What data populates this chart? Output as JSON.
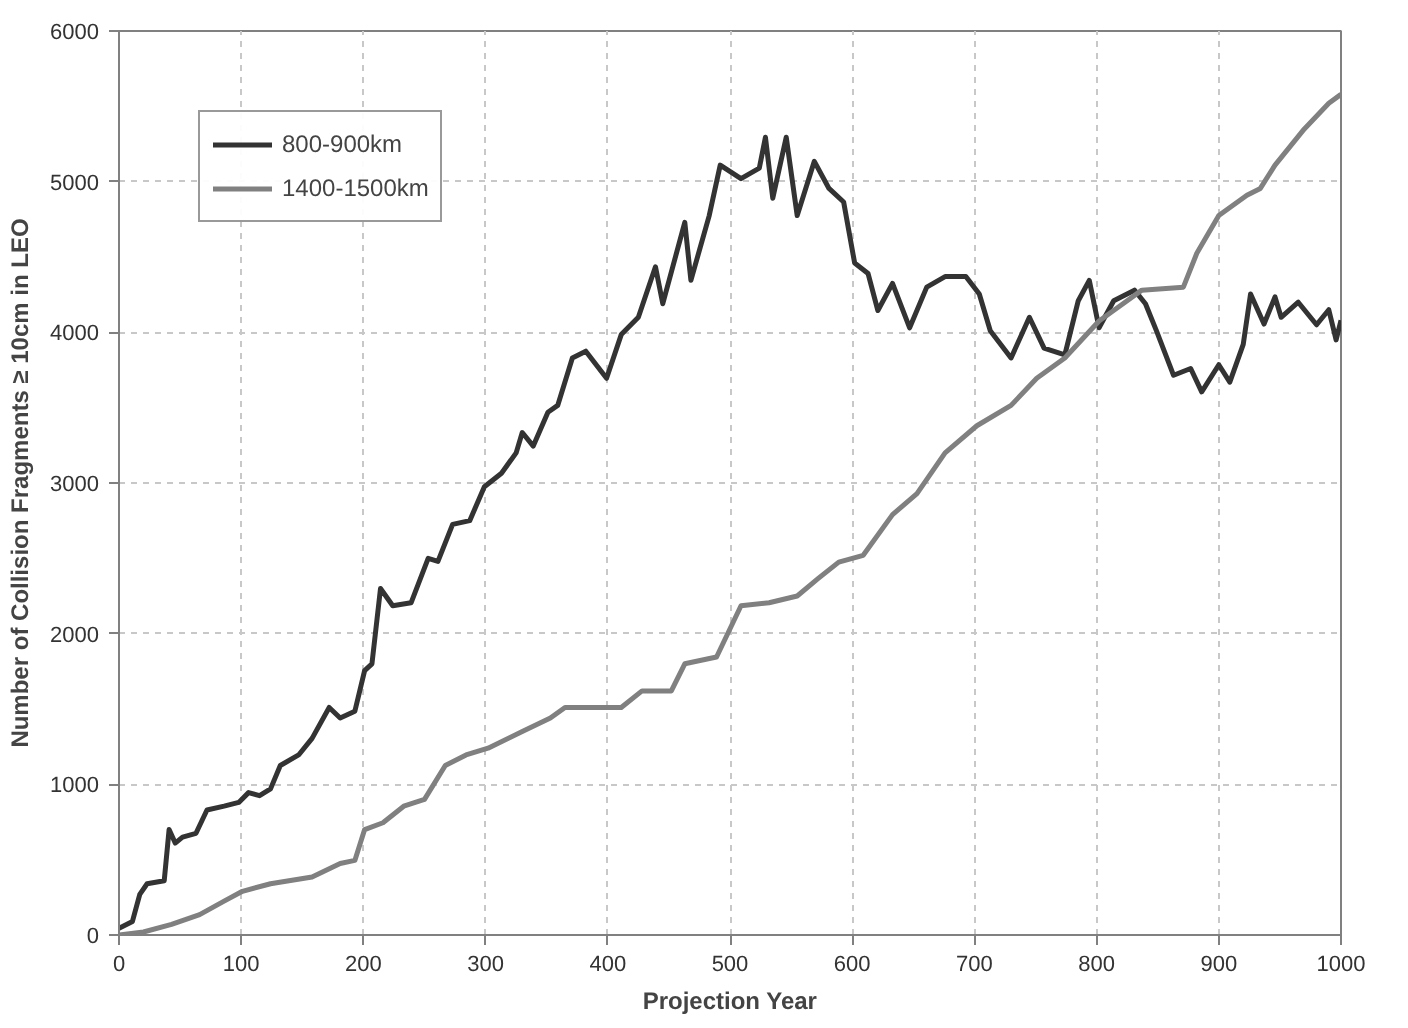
{
  "chart_data": {
    "type": "line",
    "xlabel": "Projection Year",
    "ylabel": "Number of Collision Fragments ≥ 10cm in LEO",
    "xlim": [
      0,
      1000
    ],
    "ylim": [
      0,
      6000
    ],
    "xticks": [
      0,
      100,
      200,
      300,
      400,
      500,
      600,
      700,
      800,
      900,
      1000
    ],
    "yticks": [
      0,
      1000,
      2000,
      3000,
      4000,
      5000,
      6000
    ],
    "grid": true,
    "legend": "top left",
    "line_style": "solid",
    "series": [
      {
        "name": "800-900km",
        "color": "#333333",
        "x": [
          0,
          11,
          17,
          23,
          37,
          41,
          46,
          52,
          63,
          72,
          86,
          98,
          106,
          115,
          124,
          132,
          147,
          158,
          172,
          181,
          193,
          201,
          207,
          214,
          224,
          239,
          253,
          261,
          273,
          287,
          299,
          313,
          325,
          330,
          339,
          351,
          359,
          371,
          382,
          399,
          411,
          425,
          439,
          445,
          463,
          468,
          483,
          492,
          509,
          524,
          529,
          535,
          546,
          555,
          569,
          581,
          593,
          602,
          613,
          621,
          633,
          647,
          661,
          676,
          693,
          704,
          713,
          730,
          745,
          757,
          774,
          785,
          794,
          802,
          814,
          831,
          840,
          849,
          863,
          877,
          886,
          900,
          909,
          920,
          926,
          937,
          946,
          951,
          965,
          980,
          990,
          996,
          1000
        ],
        "values": [
          45,
          90,
          270,
          340,
          360,
          700,
          610,
          650,
          675,
          830,
          855,
          880,
          945,
          925,
          970,
          1125,
          1195,
          1305,
          1510,
          1440,
          1485,
          1755,
          1800,
          2300,
          2185,
          2205,
          2500,
          2480,
          2725,
          2750,
          2975,
          3065,
          3200,
          3335,
          3245,
          3470,
          3515,
          3830,
          3875,
          3695,
          3985,
          4100,
          4435,
          4190,
          4730,
          4345,
          4775,
          5110,
          5020,
          5090,
          5295,
          4890,
          5295,
          4775,
          5135,
          4955,
          4865,
          4460,
          4390,
          4145,
          4325,
          4030,
          4300,
          4370,
          4370,
          4255,
          4010,
          3830,
          4100,
          3895,
          3850,
          4210,
          4345,
          4030,
          4210,
          4280,
          4190,
          4010,
          3715,
          3760,
          3605,
          3785,
          3670,
          3920,
          4255,
          4055,
          4235,
          4100,
          4200,
          4050,
          4150,
          3950,
          4080
        ]
      },
      {
        "name": "1400-1500km",
        "color": "#808080",
        "x": [
          0,
          20,
          43,
          66,
          86,
          101,
          124,
          158,
          181,
          193,
          201,
          216,
          233,
          250,
          267,
          284,
          302,
          330,
          353,
          365,
          388,
          411,
          428,
          452,
          463,
          489,
          509,
          532,
          555,
          572,
          589,
          609,
          633,
          653,
          676,
          702,
          730,
          751,
          774,
          802,
          825,
          837,
          871,
          882,
          900,
          923,
          934,
          946,
          970,
          990,
          1000
        ],
        "values": [
          0,
          20,
          70,
          135,
          225,
          290,
          340,
          385,
          475,
          495,
          700,
          745,
          855,
          900,
          1125,
          1195,
          1240,
          1350,
          1440,
          1510,
          1510,
          1510,
          1620,
          1620,
          1800,
          1845,
          2185,
          2205,
          2250,
          2365,
          2475,
          2520,
          2790,
          2930,
          3200,
          3380,
          3515,
          3695,
          3830,
          4075,
          4210,
          4280,
          4300,
          4525,
          4775,
          4910,
          4955,
          5110,
          5350,
          5520,
          5580
        ]
      }
    ]
  }
}
